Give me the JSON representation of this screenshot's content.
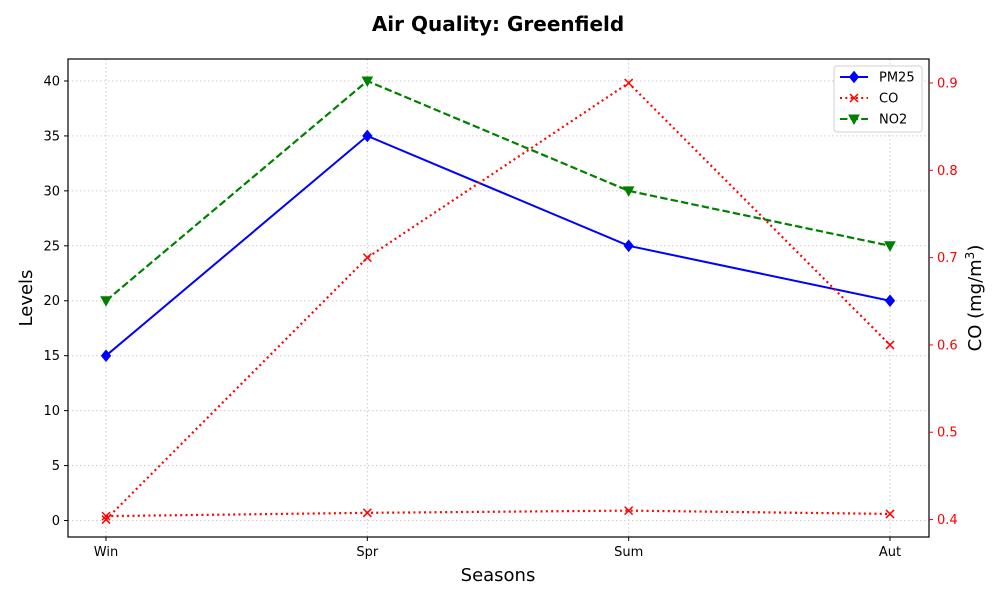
{
  "chart_data": {
    "type": "line",
    "title": "Air Quality: Greenfield",
    "xlabel": "Seasons",
    "ylabel": "Levels",
    "y2label_main": "CO (mg/m",
    "y2label_sup": "3",
    "y2label_end": ")",
    "categories": [
      "Win",
      "Spr",
      "Sum",
      "Aut"
    ],
    "ylim": [
      -1.5,
      42
    ],
    "yticks": [
      0,
      5,
      10,
      15,
      20,
      25,
      30,
      35,
      40
    ],
    "y2lim": [
      0.38,
      0.9275
    ],
    "y2ticks": [
      "0.4",
      "0.5",
      "0.6",
      "0.7",
      "0.8",
      "0.9"
    ],
    "grid": true,
    "legend_position": "top-right",
    "series": [
      {
        "name": "PM25",
        "axis": "left",
        "values": [
          15,
          35,
          25,
          20
        ],
        "color": "#0000ff",
        "dash": "solid",
        "marker": "diamond"
      },
      {
        "name": "CO",
        "axis": "left",
        "values": [
          0.4,
          0.7,
          0.9,
          0.6
        ],
        "color": "#ff0000",
        "dash": "dotted",
        "marker": "x",
        "legend": false
      },
      {
        "name": "CO",
        "axis": "right",
        "values": [
          0.4,
          0.7,
          0.9,
          0.6
        ],
        "color": "#ff0000",
        "dash": "dotted",
        "marker": "x"
      },
      {
        "name": "NO2",
        "axis": "left",
        "values": [
          20,
          40,
          30,
          25
        ],
        "color": "#008000",
        "dash": "dashed",
        "marker": "triangle-down"
      }
    ],
    "right_axis_color": "#ff0000"
  }
}
